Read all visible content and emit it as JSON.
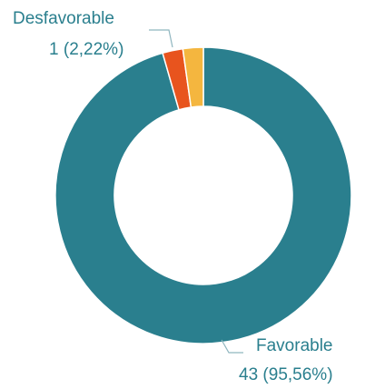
{
  "chart_data": {
    "type": "pie",
    "variant": "donut",
    "title": "",
    "slices": [
      {
        "name": "Favorable",
        "count": "43",
        "percent_label": "95,56%",
        "value": 43,
        "percent": 95.56,
        "color": "#2a7f8e"
      },
      {
        "name": "Desfavorable",
        "count": "1",
        "percent_label": "2,22%",
        "value": 1,
        "percent": 2.22,
        "color": "#e8541e"
      },
      {
        "name": "",
        "count": "",
        "percent_label": "",
        "value": 1,
        "percent": 2.22,
        "color": "#f4b63f"
      }
    ],
    "labelled_slices": [
      "Desfavorable",
      "Favorable"
    ],
    "legend": "none"
  }
}
